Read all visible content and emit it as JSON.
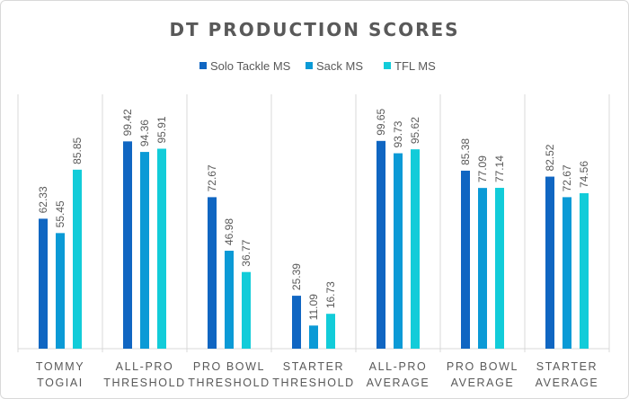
{
  "chart_data": {
    "type": "bar",
    "title": "DT PRODUCTION SCORES",
    "categories": [
      [
        "TOMMY",
        "TOGIAI"
      ],
      [
        "ALL-PRO",
        "THRESHOLD"
      ],
      [
        "PRO BOWL",
        "THRESHOLD"
      ],
      [
        "STARTER",
        "THRESHOLD"
      ],
      [
        "ALL-PRO",
        "AVERAGE"
      ],
      [
        "PRO BOWL",
        "AVERAGE"
      ],
      [
        "STARTER",
        "AVERAGE"
      ]
    ],
    "series": [
      {
        "name": "Solo Tackle MS",
        "color": "#1066c2",
        "values": [
          62.33,
          99.42,
          72.67,
          25.39,
          99.65,
          85.38,
          82.52
        ]
      },
      {
        "name": "Sack MS",
        "color": "#0b9ad6",
        "values": [
          55.45,
          94.36,
          46.98,
          11.09,
          93.73,
          77.09,
          72.67
        ]
      },
      {
        "name": "TFL MS",
        "color": "#12ccd9",
        "values": [
          85.85,
          95.91,
          36.77,
          16.73,
          95.62,
          77.14,
          74.56
        ]
      }
    ],
    "ylim": [
      0,
      100
    ],
    "legend_position": "top",
    "grid": false,
    "data_labels": true
  }
}
